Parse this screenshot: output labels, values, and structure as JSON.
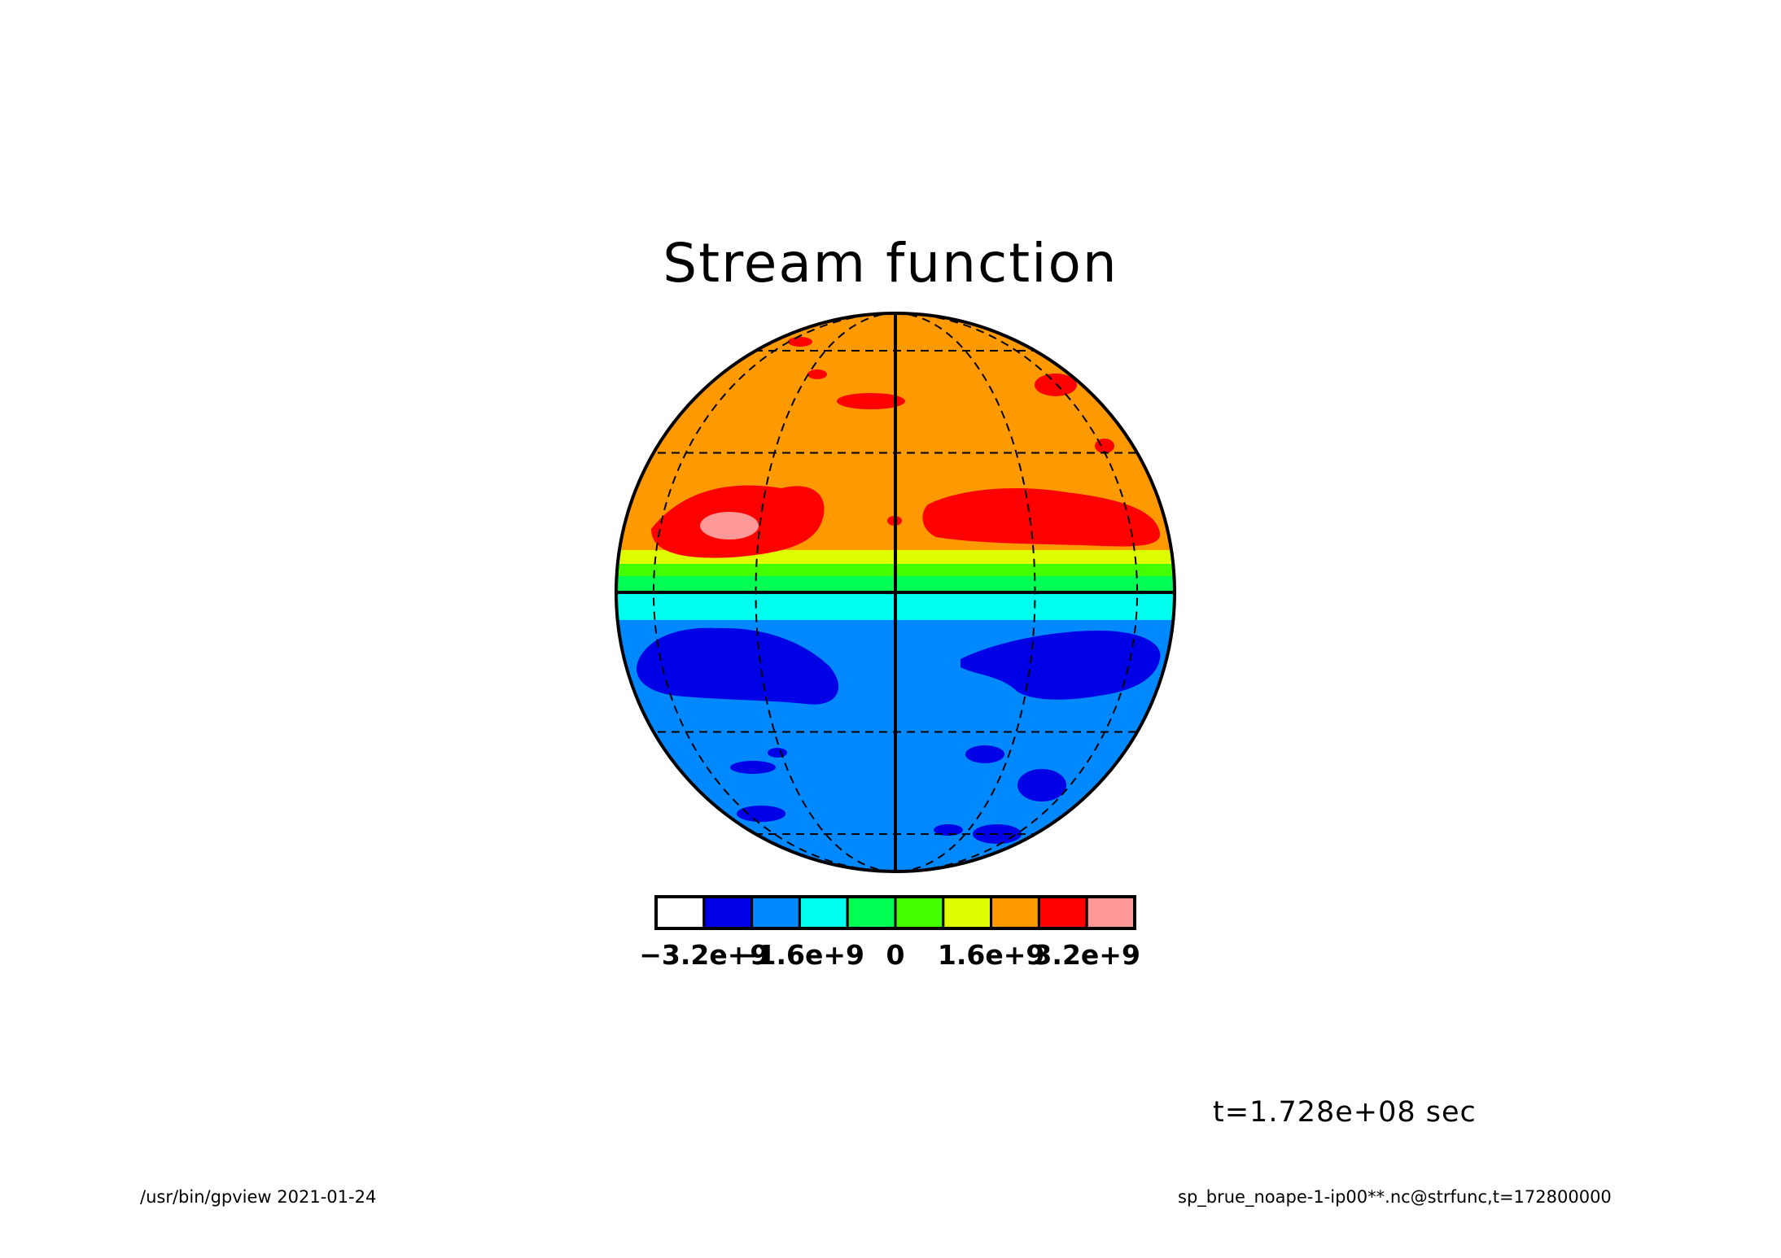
{
  "title": "Stream function",
  "time_label": "t=1.728e+08 sec",
  "footer": {
    "left": "/usr/bin/gpview  2021-01-24",
    "right": "sp_brue_noape-1-ip00**.nc@strfunc,t=172800000"
  },
  "chart_data": {
    "type": "heatmap",
    "projection": "orthographic",
    "title": "Stream function",
    "variable": "strfunc",
    "time": "t=1.728e+08 sec",
    "colorbar": {
      "tick_labels": [
        "−3.2e+9",
        "−1.6e+9",
        "0",
        "1.6e+9",
        "3.2e+9"
      ],
      "tick_values": [
        -3200000000,
        -1600000000,
        0,
        1600000000,
        3200000000
      ],
      "levels": [
        -4000000000,
        -3200000000,
        -2400000000,
        -1600000000,
        -800000000,
        0,
        800000000,
        1600000000,
        2400000000,
        3200000000,
        4000000000
      ],
      "colors": [
        "#ffffff",
        "#ffffff",
        "#0000e6",
        "#0088ff",
        "#00ffee",
        "#00ff55",
        "#44ff00",
        "#ddff00",
        "#ff9900",
        "#ff0000",
        "#ff9999"
      ]
    },
    "grid_lines": true
  }
}
